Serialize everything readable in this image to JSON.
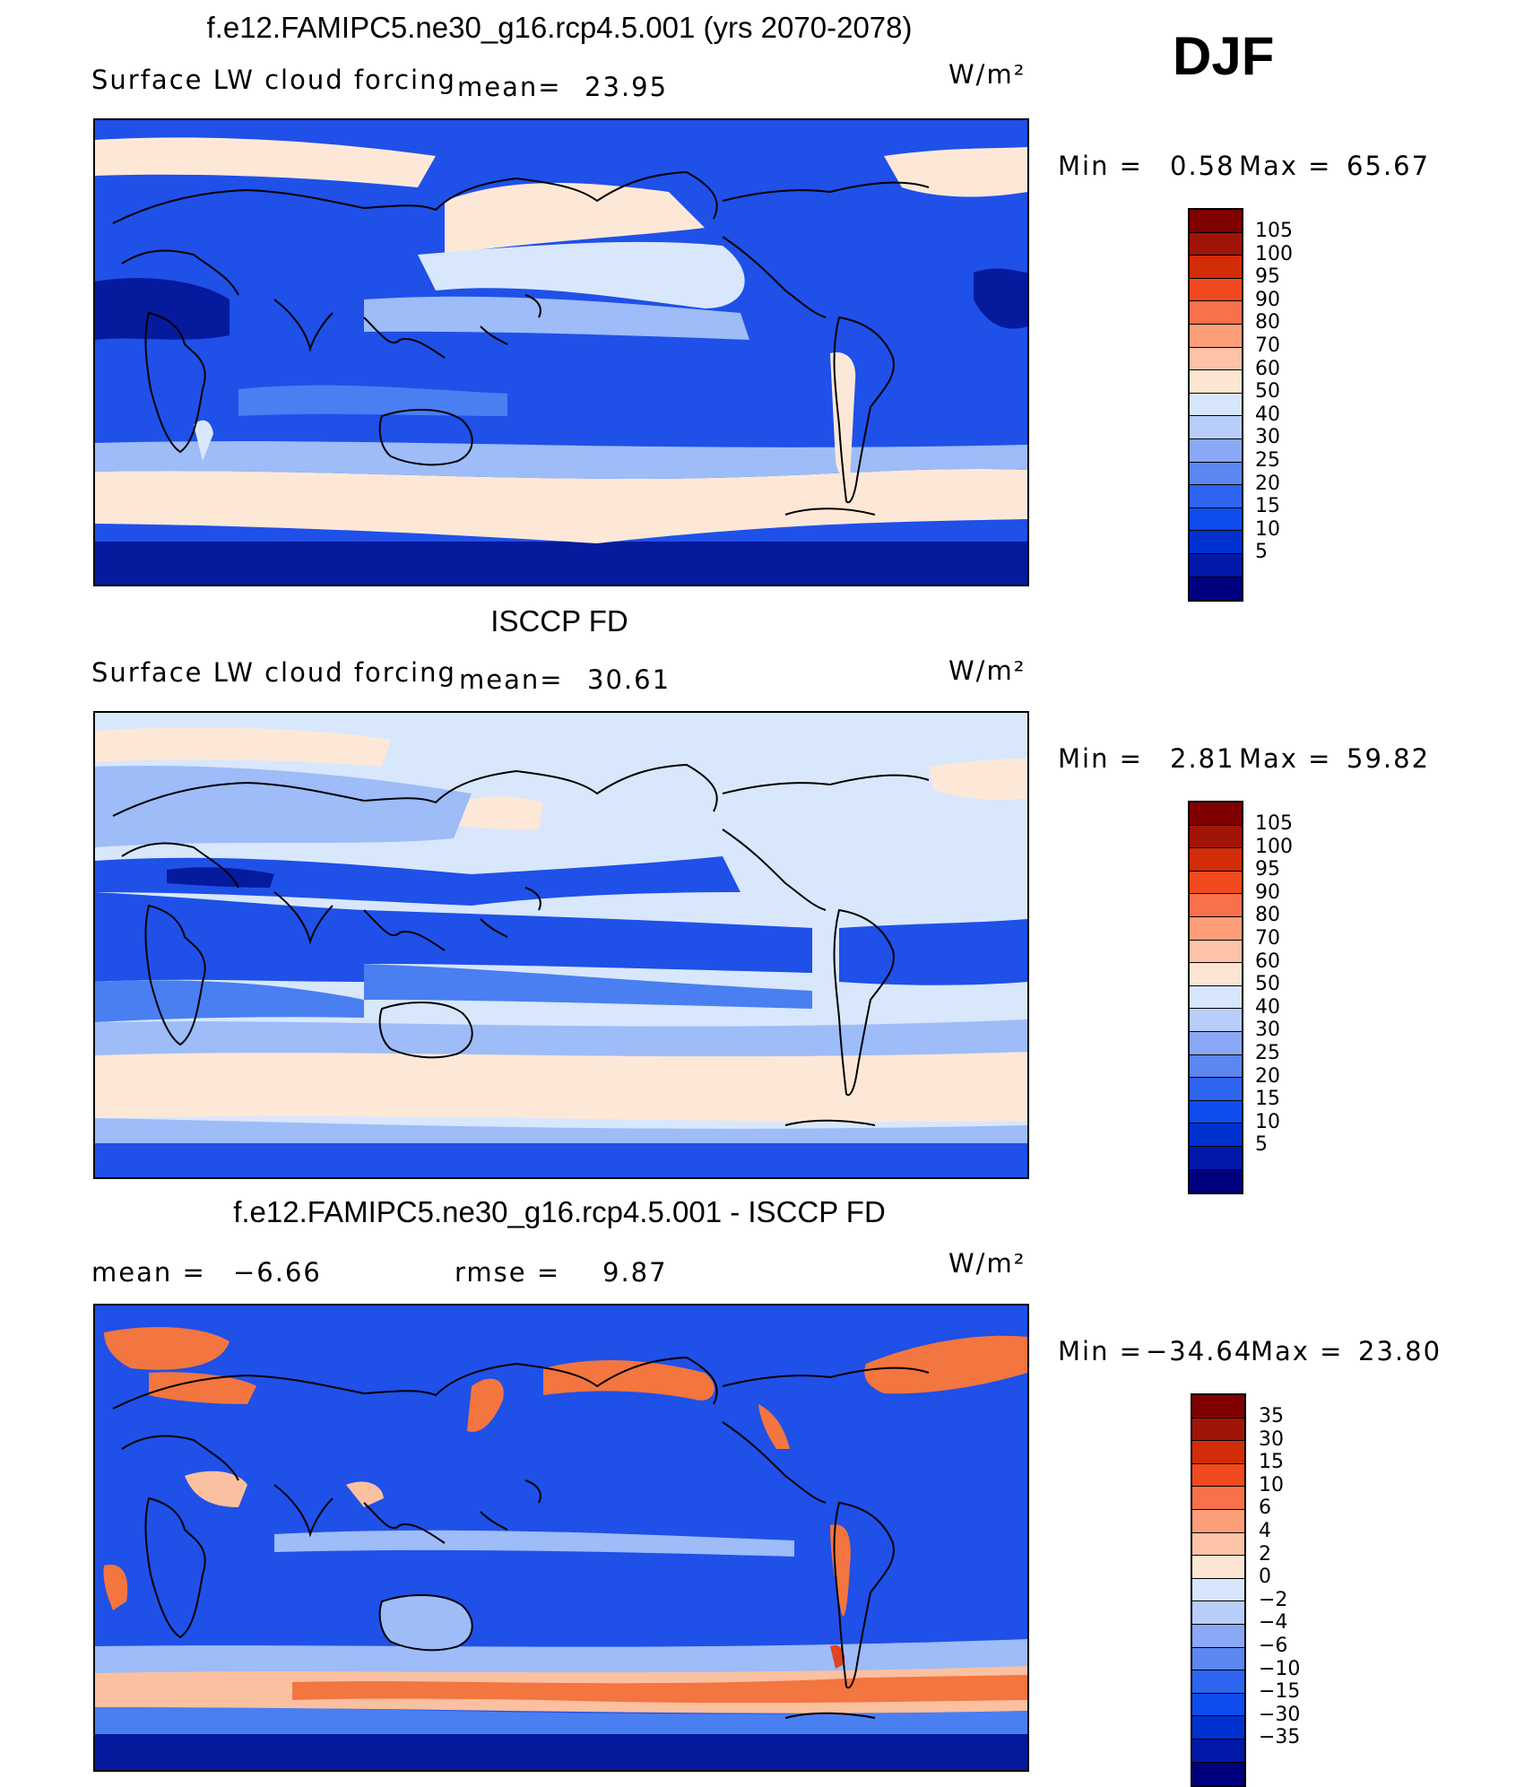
{
  "season": "DJF",
  "units": "W/m²",
  "colors": {
    "levels_cmap": [
      "#00007f",
      "#0019a8",
      "#0032d0",
      "#0e4cf0",
      "#2d64f0",
      "#5c86f0",
      "#8aa8f5",
      "#b8cdfa",
      "#d7e6fc",
      "#fde5d3",
      "#fcc3a6",
      "#fc9e7a",
      "#f8714a",
      "#f24a1e",
      "#d22c08",
      "#a11408",
      "#800000"
    ],
    "map": {
      "deep": "#061a9e",
      "blue": "#1f50e8",
      "mid": "#4a7ff2",
      "light": "#9dbcf8",
      "pale": "#d8e7fc",
      "cream": "#fde8d8",
      "peach": "#fbc0a0",
      "orange": "#f3753f",
      "red": "#e04420"
    }
  },
  "panels": [
    {
      "title": "f.e12.FAMIPC5.ne30_g16.rcp4.5.001 (yrs 2070-2078)",
      "left_label": "Surface LW cloud forcing",
      "mean_label": "mean=",
      "mean_value": "23.95",
      "min_label": "Min  =",
      "min_value": "0.58",
      "max_label": "Max  =",
      "max_value": "65.67",
      "levels": [
        "105",
        "100",
        "95",
        "90",
        "80",
        "70",
        "60",
        "50",
        "40",
        "30",
        "25",
        "20",
        "15",
        "10",
        "5"
      ]
    },
    {
      "title": "ISCCP FD",
      "left_label": "Surface LW cloud forcing",
      "mean_label": "mean=",
      "mean_value": "30.61",
      "min_label": "Min  =",
      "min_value": "2.81",
      "max_label": "Max  =",
      "max_value": "59.82",
      "levels": [
        "105",
        "100",
        "95",
        "90",
        "80",
        "70",
        "60",
        "50",
        "40",
        "30",
        "25",
        "20",
        "15",
        "10",
        "5"
      ]
    },
    {
      "title": "f.e12.FAMIPC5.ne30_g16.rcp4.5.001 - ISCCP FD",
      "mean_label": "mean  =",
      "mean_value": "−6.66",
      "rmse_label": "rmse  =",
      "rmse_value": "9.87",
      "min_label": "Min  =",
      "min_value": "−34.64",
      "max_label": "Max  =",
      "max_value": "23.80",
      "levels": [
        "35",
        "30",
        "15",
        "10",
        "6",
        "4",
        "2",
        "0",
        "−2",
        "−4",
        "−6",
        "−10",
        "−15",
        "−30",
        "−35"
      ]
    }
  ]
}
